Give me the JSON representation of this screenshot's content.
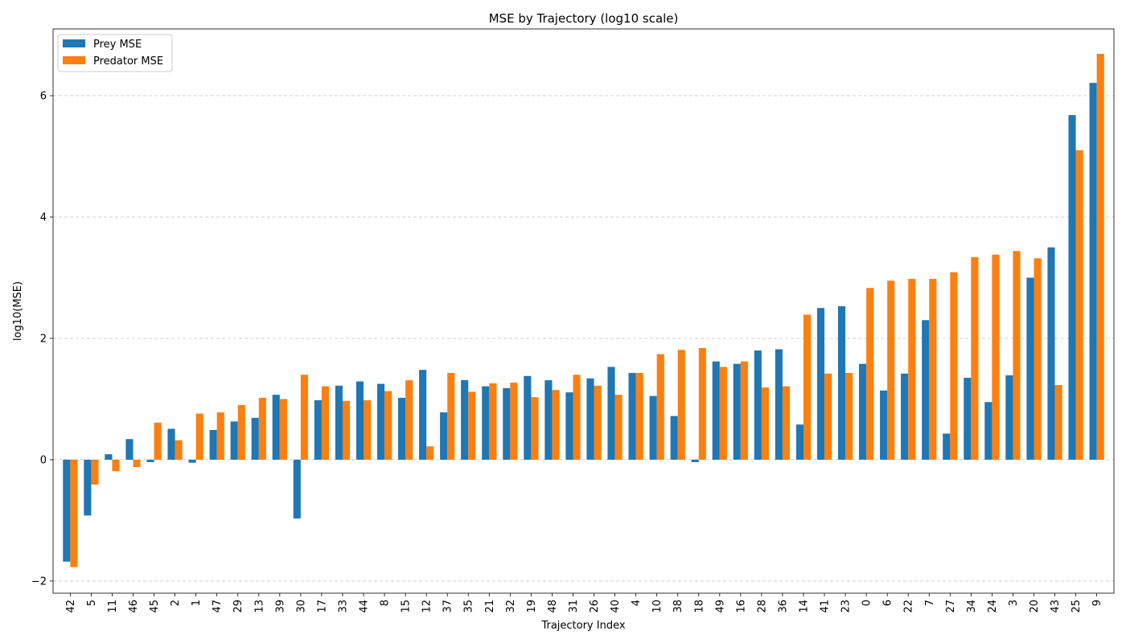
{
  "chart_data": {
    "type": "bar",
    "title": "MSE by Trajectory (log10 scale)",
    "xlabel": "Trajectory Index",
    "ylabel": "log10(MSE)",
    "ylim": [
      -2.2,
      7.1
    ],
    "yticks": [
      -2,
      0,
      2,
      4,
      6
    ],
    "grid": "y-dashed",
    "legend_position": "top-left",
    "categories": [
      "42",
      "5",
      "11",
      "46",
      "45",
      "2",
      "1",
      "47",
      "29",
      "13",
      "39",
      "30",
      "17",
      "33",
      "44",
      "8",
      "15",
      "12",
      "37",
      "35",
      "21",
      "32",
      "19",
      "48",
      "31",
      "26",
      "40",
      "4",
      "10",
      "38",
      "18",
      "49",
      "16",
      "28",
      "36",
      "14",
      "41",
      "23",
      "0",
      "6",
      "22",
      "7",
      "27",
      "34",
      "24",
      "3",
      "20",
      "43",
      "25",
      "9"
    ],
    "series": [
      {
        "name": "Prey MSE",
        "color": "#1f77b4",
        "values": [
          -1.68,
          -0.92,
          0.09,
          0.34,
          -0.04,
          0.51,
          -0.05,
          0.49,
          0.63,
          0.69,
          1.07,
          -0.97,
          0.98,
          1.22,
          1.29,
          1.25,
          1.02,
          1.48,
          0.78,
          1.31,
          1.21,
          1.18,
          1.38,
          1.31,
          1.11,
          1.34,
          1.53,
          1.43,
          1.05,
          0.72,
          -0.04,
          1.62,
          1.58,
          1.8,
          1.82,
          0.58,
          2.5,
          2.53,
          1.58,
          1.14,
          1.42,
          2.3,
          0.43,
          1.35,
          0.95,
          1.39,
          3.0,
          3.5,
          5.68,
          6.21
        ]
      },
      {
        "name": "Predator MSE",
        "color": "#ff7f0e",
        "values": [
          -1.77,
          -0.41,
          -0.19,
          -0.12,
          0.61,
          0.32,
          0.76,
          0.78,
          0.9,
          1.02,
          1.0,
          1.4,
          1.21,
          0.97,
          0.98,
          1.13,
          1.31,
          0.22,
          1.43,
          1.12,
          1.26,
          1.27,
          1.03,
          1.15,
          1.4,
          1.22,
          1.07,
          1.43,
          1.74,
          1.81,
          1.84,
          1.53,
          1.62,
          1.19,
          1.21,
          2.39,
          1.42,
          1.43,
          2.83,
          2.95,
          2.98,
          2.98,
          3.09,
          3.34,
          3.38,
          3.44,
          3.32,
          1.23,
          5.1,
          6.69
        ]
      }
    ]
  }
}
